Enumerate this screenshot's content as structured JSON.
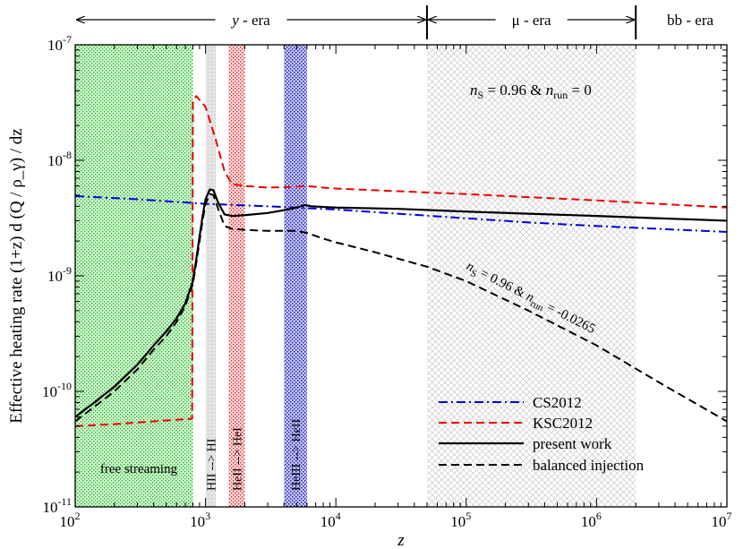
{
  "chart_data": {
    "type": "line",
    "title": "",
    "xlabel": "z",
    "ylabel": "Effective heating rate  (1+z) d (Q / ρ_γ) / dz",
    "xscale": "log",
    "yscale": "log",
    "xlim": [
      100,
      10000000
    ],
    "ylim": [
      1e-11,
      1e-07
    ],
    "x_ticks": [
      {
        "value": 100,
        "base": "10",
        "exp": "2"
      },
      {
        "value": 1000,
        "base": "10",
        "exp": "3"
      },
      {
        "value": 10000,
        "base": "10",
        "exp": "4"
      },
      {
        "value": 100000,
        "base": "10",
        "exp": "5"
      },
      {
        "value": 1000000,
        "base": "10",
        "exp": "6"
      },
      {
        "value": 10000000,
        "base": "10",
        "exp": "7"
      }
    ],
    "y_ticks": [
      {
        "value": 1e-11,
        "base": "10",
        "exp": "-11"
      },
      {
        "value": 1e-10,
        "base": "10",
        "exp": "-10"
      },
      {
        "value": 1e-09,
        "base": "10",
        "exp": "-9"
      },
      {
        "value": 1e-08,
        "base": "10",
        "exp": "-8"
      },
      {
        "value": 1e-07,
        "base": "10",
        "exp": "-7"
      }
    ],
    "eras": [
      {
        "label": "y - era",
        "from": 100,
        "to": 50000
      },
      {
        "label": "μ - era",
        "from": 50000,
        "to": 2000000
      },
      {
        "label": "bb - era",
        "from": 2000000,
        "to": 10000000
      }
    ],
    "bands": [
      {
        "label": "free streaming",
        "from": 100,
        "to": 800,
        "color": "#33cc33",
        "pattern": "dots"
      },
      {
        "label": "HII --> HI",
        "from": 1000,
        "to": 1200,
        "color": "#bbbbbb",
        "pattern": "solid"
      },
      {
        "label": "HeII --> HeI",
        "from": 1500,
        "to": 2000,
        "color": "#ee2222",
        "pattern": "dots"
      },
      {
        "label": "HeIII --> HeII",
        "from": 4000,
        "to": 6000,
        "color": "#2222cc",
        "pattern": "dots"
      },
      {
        "label": "",
        "from": 50000,
        "to": 2000000,
        "color": "#999999",
        "pattern": "crosshatch"
      }
    ],
    "annotations": [
      {
        "id": "ns-upper",
        "n_sub": "S",
        "parts": [
          "n",
          "S",
          " = 0.96 & ",
          "n",
          "run",
          " = 0"
        ]
      },
      {
        "id": "ns-lower",
        "parts": [
          "n",
          "S",
          " = 0.96 & ",
          "n",
          "run",
          " = -0.0265"
        ]
      }
    ],
    "series": [
      {
        "name": "CS2012",
        "color": "#0000dd",
        "dash": "dashdot",
        "x": [
          100,
          300,
          1000,
          3000,
          10000,
          30000,
          100000,
          300000,
          1000000,
          3000000,
          10000000
        ],
        "y": [
          4.9e-09,
          4.6e-09,
          4.2e-09,
          4e-09,
          3.75e-09,
          3.45e-09,
          3.15e-09,
          2.9e-09,
          2.7e-09,
          2.55e-09,
          2.4e-09
        ]
      },
      {
        "name": "KSC2012",
        "color": "#ee0000",
        "dash": "dashed",
        "x": [
          100,
          200,
          400,
          790,
          800,
          850,
          1000,
          1200,
          1400,
          1600,
          2000,
          3000,
          5000,
          6000,
          8000,
          10000,
          30000,
          100000,
          300000,
          1000000,
          3000000,
          10000000
        ],
        "y": [
          5e-11,
          5.2e-11,
          5.5e-11,
          5.8e-11,
          3.3e-08,
          3.6e-08,
          2.9e-08,
          1.5e-08,
          8e-09,
          6.2e-09,
          6e-09,
          5.8e-09,
          5.9e-09,
          6e-09,
          5.8e-09,
          5.7e-09,
          5.4e-09,
          5.1e-09,
          4.8e-09,
          4.5e-09,
          4.2e-09,
          3.9e-09
        ]
      },
      {
        "name": "present work",
        "color": "#000000",
        "dash": "solid",
        "x": [
          100,
          150,
          200,
          300,
          400,
          500,
          600,
          700,
          800,
          850,
          900,
          950,
          1000,
          1080,
          1150,
          1250,
          1400,
          1600,
          2000,
          3000,
          4000,
          5000,
          5800,
          6500,
          8000,
          10000,
          30000,
          100000,
          300000,
          1000000,
          3000000,
          10000000
        ],
        "y": [
          6e-11,
          8.5e-11,
          1.1e-10,
          1.7e-10,
          2.5e-10,
          3.3e-10,
          4.3e-10,
          5.8e-10,
          9e-10,
          1.4e-09,
          2.2e-09,
          3.3e-09,
          4.6e-09,
          5.6e-09,
          5.5e-09,
          4.3e-09,
          3.4e-09,
          3.3e-09,
          3.35e-09,
          3.5e-09,
          3.7e-09,
          3.9e-09,
          4.1e-09,
          4e-09,
          3.95e-09,
          3.9e-09,
          3.8e-09,
          3.6e-09,
          3.45e-09,
          3.3e-09,
          3.15e-09,
          3e-09
        ]
      },
      {
        "name": "balanced injection",
        "color": "#000000",
        "dash": "dashed",
        "x": [
          100,
          150,
          200,
          300,
          400,
          500,
          600,
          700,
          800,
          850,
          900,
          950,
          1000,
          1080,
          1150,
          1250,
          1400,
          1600,
          2000,
          3000,
          5000,
          6000,
          8000,
          10000,
          20000,
          50000,
          100000,
          300000,
          1000000,
          3000000,
          10000000
        ],
        "y": [
          5.5e-11,
          7.8e-11,
          1e-10,
          1.55e-10,
          2.3e-10,
          3e-10,
          4e-10,
          5.5e-10,
          8.5e-10,
          1.3e-09,
          2e-09,
          3e-09,
          4.2e-09,
          5.1e-09,
          5e-09,
          3.8e-09,
          2.7e-09,
          2.55e-09,
          2.5e-09,
          2.45e-09,
          2.45e-09,
          2.35e-09,
          2.1e-09,
          1.95e-09,
          1.6e-09,
          1.2e-09,
          9e-10,
          5e-10,
          2.5e-10,
          1.2e-10,
          5.5e-11
        ]
      }
    ]
  }
}
